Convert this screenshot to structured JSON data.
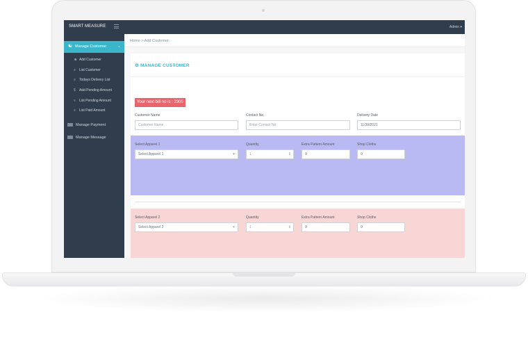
{
  "brand": "SMART MEASURE",
  "user_menu": "Admin",
  "sidebar": {
    "active": {
      "label": "Manage Customer"
    },
    "sub_items": [
      {
        "label": "Add Customer"
      },
      {
        "label": "List Customer"
      },
      {
        "label": "Todays Delivery List"
      },
      {
        "label": "Add Pending Amount"
      },
      {
        "label": "List Pending Amount"
      },
      {
        "label": "List Paid Amount"
      }
    ],
    "menus": [
      {
        "label": "Manage Payment"
      },
      {
        "label": "Manage Message"
      }
    ]
  },
  "breadcrumb": {
    "home": "Home",
    "separator": ">",
    "current": "Add Customer"
  },
  "page_title": "MANAGE CUSTOMER",
  "bill_text": "Your next bill no is : 2305",
  "form": {
    "customer_name": {
      "label": "Customer Name",
      "placeholder": "Customer Name"
    },
    "contact_no": {
      "label": "Contact No",
      "placeholder": "Enter Contact No"
    },
    "delivery_date": {
      "label": "Delivery Date",
      "value": "11/30/2021"
    }
  },
  "apparels": [
    {
      "label": "Select Apparel 1",
      "select_value": "Select Apparel 1",
      "quantity_label": "Quantity",
      "quantity": "1",
      "pattern_label": "Extra Pattern Amount",
      "pattern_value": "0",
      "shop_label": "Shop Cloths",
      "shop_value": "0"
    },
    {
      "label": "Select Apparel 2",
      "select_value": "Select Apparel 2",
      "quantity_label": "Quantity",
      "quantity": "1",
      "pattern_label": "Extra Pattern Amount",
      "pattern_value": "0",
      "shop_label": "Shop Cloths",
      "shop_value": "0"
    }
  ],
  "colors": {
    "accent": "#3ab5c9",
    "sidebar": "#2f3d4c",
    "bill_badge": "#e8656d",
    "apparel1_bg": "#b9b9f3",
    "apparel2_bg": "#f8d6d6"
  }
}
